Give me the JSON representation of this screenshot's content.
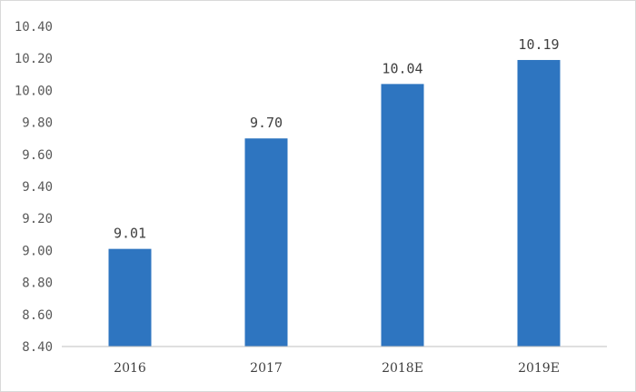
{
  "chart_data": {
    "type": "bar",
    "categories": [
      "2016",
      "2017",
      "2018E",
      "2019E"
    ],
    "values": [
      9.01,
      9.7,
      10.04,
      10.19
    ],
    "value_labels": [
      "9.01",
      "9.70",
      "10.04",
      "10.19"
    ],
    "yticks": [
      "8.40",
      "8.60",
      "8.80",
      "9.00",
      "9.20",
      "9.40",
      "9.60",
      "9.80",
      "10.00",
      "10.20",
      "10.40"
    ],
    "ylim": [
      8.4,
      10.4
    ],
    "title": "",
    "xlabel": "",
    "ylabel": "",
    "grid": false,
    "legend": "none",
    "bar_color": "#2e75c0"
  }
}
